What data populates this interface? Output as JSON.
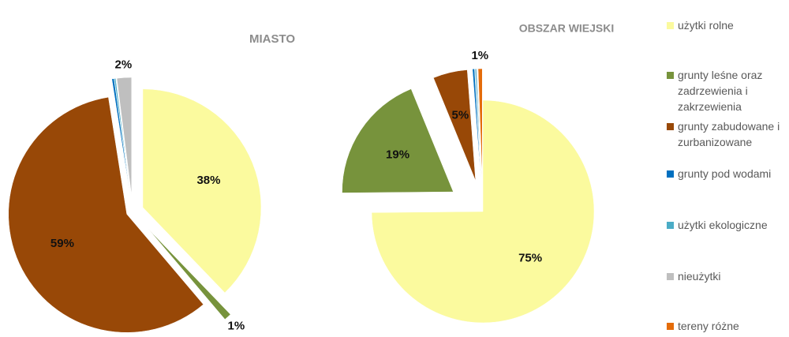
{
  "chart_data": [
    {
      "type": "pie",
      "title": "MIASTO",
      "categories": [
        "użytki rolne",
        "grunty leśne oraz zadrzewienia i zakrzewienia",
        "grunty zabudowane i zurbanizowane",
        "grunty pod wodami",
        "użytki ekologiczne",
        "nieużytki",
        "tereny różne"
      ],
      "colors": [
        "#fbfa9e",
        "#77933c",
        "#984807",
        "#0070c0",
        "#4bacc6",
        "#bfbfbf",
        "#e46c0a"
      ],
      "values": [
        38,
        1,
        59,
        0.3,
        0.2,
        2,
        0
      ],
      "value_labels": [
        "38%",
        "1%",
        "59%",
        null,
        null,
        "2%",
        null
      ]
    },
    {
      "type": "pie",
      "title": "OBSZAR WIEJSKI",
      "values": [
        75,
        19,
        5,
        0.3,
        0.2,
        0.1,
        0.6
      ],
      "value_labels": [
        "75%",
        "19%",
        "5%",
        null,
        null,
        null,
        "1%"
      ]
    }
  ]
}
